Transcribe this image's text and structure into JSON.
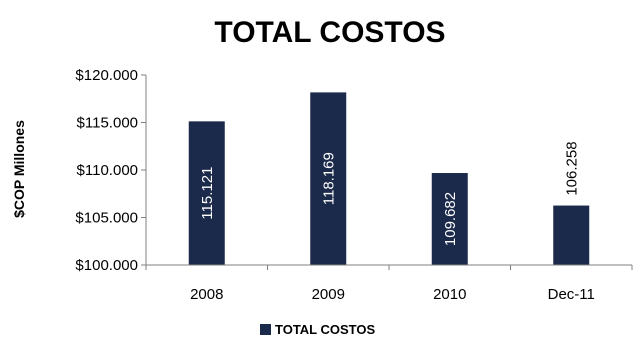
{
  "colors": {
    "bar": "#1b2a4a",
    "axis": "#808080",
    "label_inside": "#ffffff",
    "label_outside": "#000000"
  },
  "chart_data": {
    "type": "bar",
    "title": "TOTAL COSTOS",
    "xlabel": "",
    "ylabel": "$COP Millones",
    "categories": [
      "2008",
      "2009",
      "2010",
      "Dec-11"
    ],
    "series": [
      {
        "name": "TOTAL COSTOS",
        "values": [
          115121,
          118169,
          109682,
          106258
        ]
      }
    ],
    "data_labels": [
      "115.121",
      "118.169",
      "109.682",
      "106.258"
    ],
    "ylim": [
      100000,
      120000
    ],
    "yticks": [
      100000,
      105000,
      110000,
      115000,
      120000
    ],
    "ytick_labels": [
      "$100.000",
      "$105.000",
      "$110.000",
      "$115.000",
      "$120.000"
    ],
    "grid": false,
    "legend_position": "bottom"
  }
}
